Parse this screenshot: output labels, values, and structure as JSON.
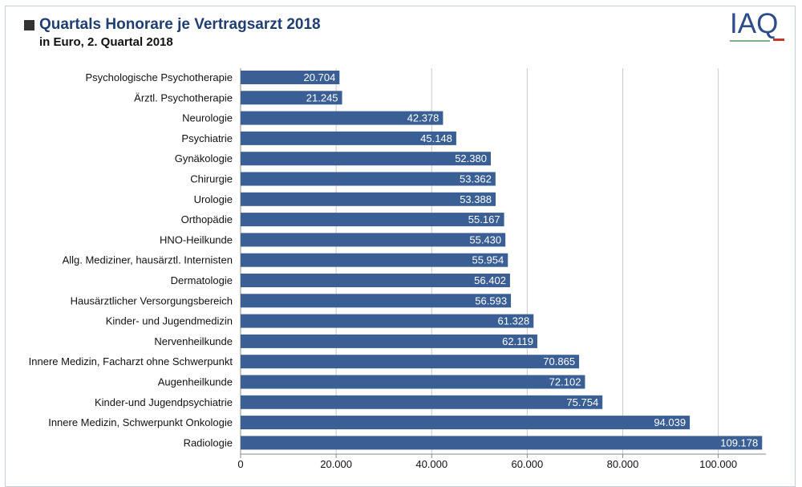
{
  "header": {
    "title": "Quartals Honorare je Vertragsarzt 2018",
    "subtitle": "in Euro, 2. Quartal 2018",
    "logo": "IAQ"
  },
  "colors": {
    "bar": "#3a5f95",
    "title": "#1f3f73",
    "grid": "#c8c8c8"
  },
  "chart_data": {
    "type": "bar",
    "orientation": "horizontal",
    "title": "Quartals Honorare je Vertragsarzt 2018",
    "subtitle": "in Euro, 2. Quartal 2018",
    "categories": [
      "Psychologische Psychotherapie",
      "Ärztl. Psychotherapie",
      "Neurologie",
      "Psychiatrie",
      "Gynäkologie",
      "Chirurgie",
      "Urologie",
      "Orthopädie",
      "HNO-Heilkunde",
      "Allg. Mediziner, hausärztl. Internisten",
      "Dermatologie",
      "Hausärztlicher Versorgungsbereich",
      "Kinder- und Jugendmedizin",
      "Nervenheilkunde",
      "Innere Medizin, Facharzt ohne Schwerpunkt",
      "Augenheilkunde",
      "Kinder-und Jugendpsychiatrie",
      "Innere Medizin, Schwerpunkt Onkologie",
      "Radiologie"
    ],
    "values": [
      20704,
      21245,
      42378,
      45148,
      52380,
      53362,
      53388,
      55167,
      55430,
      55954,
      56402,
      56593,
      61328,
      62119,
      70865,
      72102,
      75754,
      94039,
      109178
    ],
    "value_labels": [
      "20.704",
      "21.245",
      "42.378",
      "45.148",
      "52.380",
      "53.362",
      "53.388",
      "55.167",
      "55.430",
      "55.954",
      "56.402",
      "56.593",
      "61.328",
      "62.119",
      "70.865",
      "72.102",
      "75.754",
      "94.039",
      "109.178"
    ],
    "xlim": [
      0,
      110000
    ],
    "xticks": [
      0,
      20000,
      40000,
      60000,
      80000,
      100000
    ],
    "xtick_labels": [
      "0",
      "20.000",
      "40.000",
      "60.000",
      "80.000",
      "100.000"
    ],
    "grid": true,
    "legend": "none"
  }
}
